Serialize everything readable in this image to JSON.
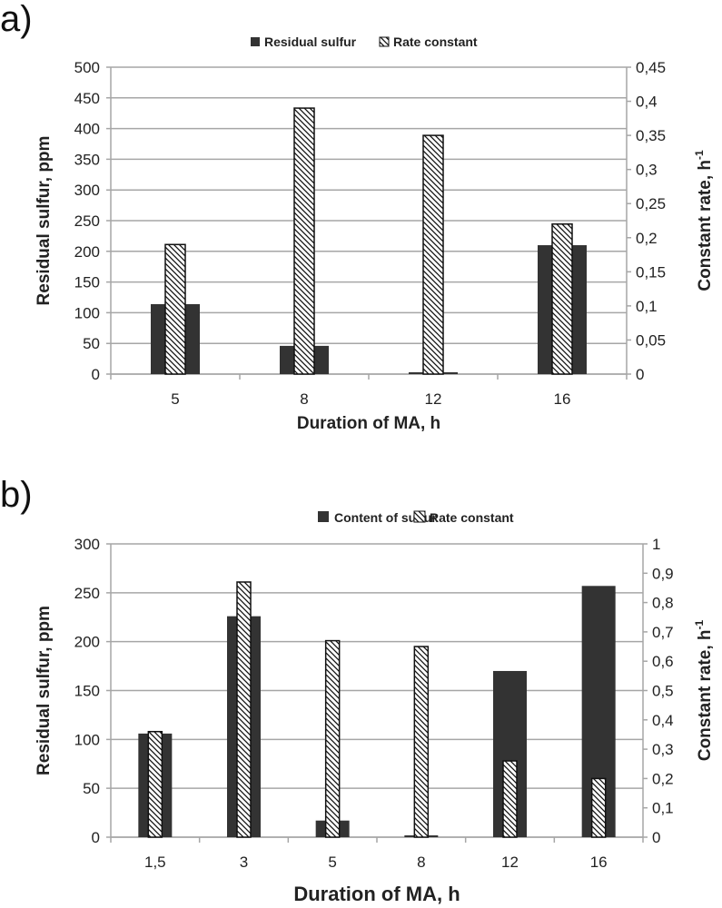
{
  "chart_data": [
    {
      "type": "bar",
      "panel_label": "a)",
      "categories": [
        "5",
        "8",
        "12",
        "16"
      ],
      "series": [
        {
          "name": "Residual sulfur",
          "axis": "left",
          "values": [
            114,
            46,
            3,
            210
          ]
        },
        {
          "name": "Rate constant",
          "axis": "right",
          "values": [
            0.19,
            0.39,
            0.35,
            0.22
          ]
        }
      ],
      "xlabel": "Duration of MA, h",
      "ylabel": "Residual sulfur, ppm",
      "ylabel_right": "Constant rate, h",
      "ylabel_right_sup": "-1",
      "ylim": [
        0,
        500
      ],
      "ylim_right": [
        0,
        0.45
      ],
      "yticks": [
        "0",
        "50",
        "100",
        "150",
        "200",
        "250",
        "300",
        "350",
        "400",
        "450",
        "500"
      ],
      "yticks_right": [
        "0",
        "0,05",
        "0,1",
        "0,15",
        "0,2",
        "0,25",
        "0,3",
        "0,35",
        "0,4",
        "0,45"
      ],
      "grid": true,
      "legend_position": "top-center"
    },
    {
      "type": "bar",
      "panel_label": "b)",
      "categories": [
        "1,5",
        "3",
        "5",
        "8",
        "12",
        "16"
      ],
      "series": [
        {
          "name": "Content of sulfur",
          "axis": "left",
          "values": [
            106,
            226,
            17,
            1,
            170,
            257
          ]
        },
        {
          "name": "Rate constant",
          "axis": "right",
          "values": [
            0.36,
            0.87,
            0.67,
            0.65,
            0.26,
            0.2
          ]
        }
      ],
      "xlabel": "Duration of MA, h",
      "ylabel": "Residual sulfur, ppm",
      "ylabel_right": "Constant rate, h",
      "ylabel_right_sup": "-1",
      "ylim": [
        0,
        300
      ],
      "ylim_right": [
        0,
        1
      ],
      "yticks": [
        "0",
        "50",
        "100",
        "150",
        "200",
        "250",
        "300"
      ],
      "yticks_right": [
        "0",
        "0,1",
        "0,2",
        "0,3",
        "0,4",
        "0,5",
        "0,6",
        "0,7",
        "0,8",
        "0,9",
        "1"
      ],
      "grid": true,
      "legend_position": "top-center"
    }
  ],
  "colors": {
    "dark_bar": "#333333",
    "grid": "#a6a6a6",
    "hatch": "#111111"
  }
}
